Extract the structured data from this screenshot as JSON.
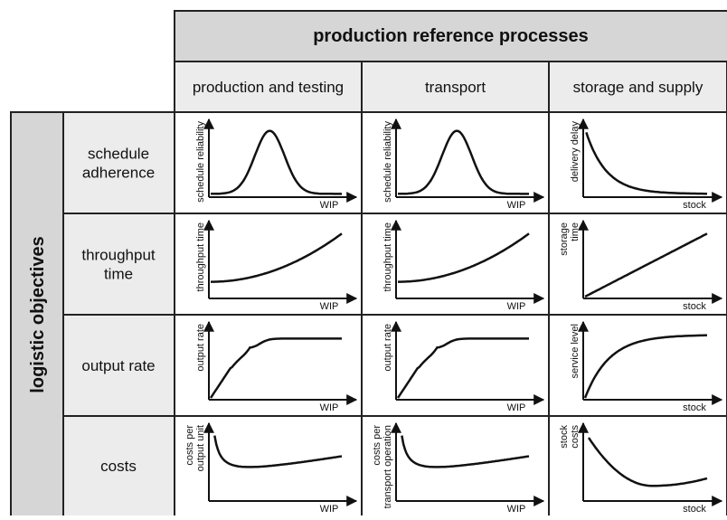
{
  "header": {
    "title": "production reference processes"
  },
  "columns": [
    "production and testing",
    "transport",
    "storage and supply"
  ],
  "side_label": "logistic objectives",
  "rows": [
    {
      "label": [
        "schedule",
        "adherence"
      ],
      "cells": [
        {
          "y_label": [
            "schedule reliability"
          ],
          "x_label": "WIP"
        },
        {
          "y_label": [
            "schedule reliability"
          ],
          "x_label": "WIP"
        },
        {
          "y_label": [
            "delivery delay"
          ],
          "x_label": "stock"
        }
      ]
    },
    {
      "label": [
        "throughput",
        "time"
      ],
      "cells": [
        {
          "y_label": [
            "throughput time"
          ],
          "x_label": "WIP"
        },
        {
          "y_label": [
            "throughput time"
          ],
          "x_label": "WIP"
        },
        {
          "y_label": [
            "storage",
            "time"
          ],
          "x_label": "stock"
        }
      ]
    },
    {
      "label": [
        "output rate"
      ],
      "cells": [
        {
          "y_label": [
            "output rate"
          ],
          "x_label": "WIP"
        },
        {
          "y_label": [
            "output rate"
          ],
          "x_label": "WIP"
        },
        {
          "y_label": [
            "service level"
          ],
          "x_label": "stock"
        }
      ]
    },
    {
      "label": [
        "costs"
      ],
      "cells": [
        {
          "y_label": [
            "costs per",
            "output unit"
          ],
          "x_label": "WIP"
        },
        {
          "y_label": [
            "costs per",
            "transport operation"
          ],
          "x_label": "WIP"
        },
        {
          "y_label": [
            "stock",
            "costs"
          ],
          "x_label": "stock"
        }
      ]
    }
  ]
}
